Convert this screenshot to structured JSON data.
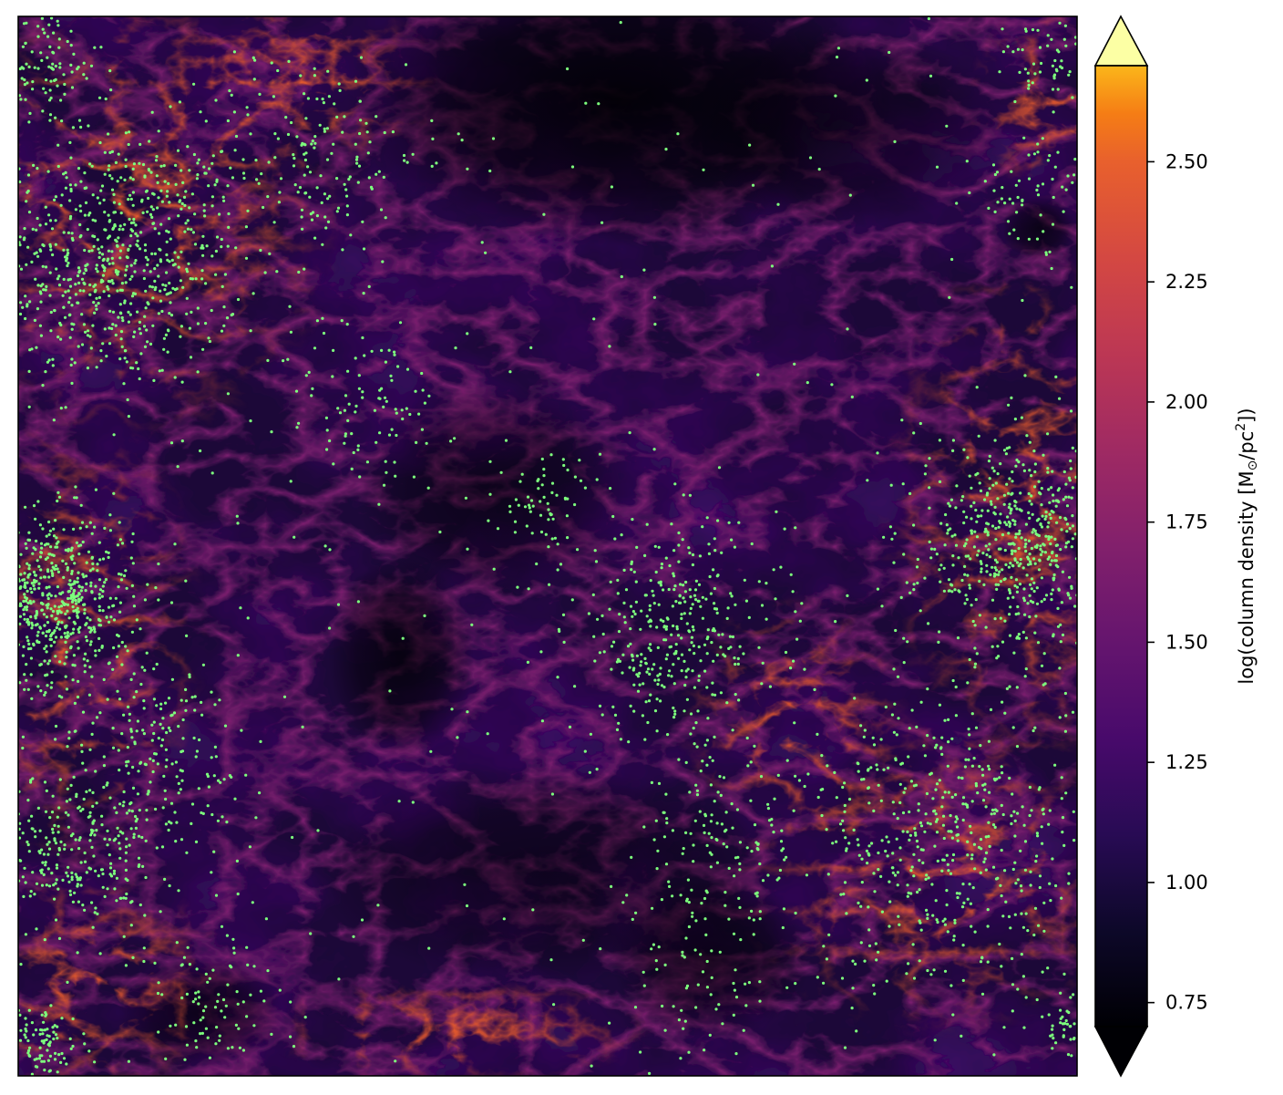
{
  "chart_data": {
    "type": "heatmap",
    "title": "",
    "xlabel": "",
    "ylabel": "",
    "colormap": "inferno",
    "axes_ticks_visible": false,
    "grid": false,
    "colorbar": {
      "label": "log(column density [M",
      "label_sub": "⊙",
      "label_mid": "/pc",
      "label_sup": "2",
      "label_end": "])",
      "range": [
        0.7,
        2.7
      ],
      "extend": "both",
      "ticks": [
        0.75,
        1.0,
        1.25,
        1.5,
        1.75,
        2.0,
        2.25,
        2.5
      ],
      "tick_labels": [
        "0.75",
        "1.00",
        "1.25",
        "1.50",
        "1.75",
        "2.00",
        "2.25",
        "2.50"
      ]
    },
    "overlay": {
      "type": "scatter",
      "marker": "dot",
      "color": "#7dff7d",
      "clusters": [
        {
          "region": "upper-left",
          "cx": 0.09,
          "cy": 0.77,
          "spread": 0.06,
          "n": 700
        },
        {
          "region": "upper-left-edge",
          "cx": 0.02,
          "cy": 0.95,
          "spread": 0.03,
          "n": 120
        },
        {
          "region": "upper-center-left",
          "cx": 0.28,
          "cy": 0.87,
          "spread": 0.05,
          "n": 160
        },
        {
          "region": "left-mid",
          "cx": 0.33,
          "cy": 0.63,
          "spread": 0.04,
          "n": 90
        },
        {
          "region": "left-edge-mid",
          "cx": 0.03,
          "cy": 0.45,
          "spread": 0.04,
          "n": 650
        },
        {
          "region": "left-lower",
          "cx": 0.05,
          "cy": 0.21,
          "spread": 0.04,
          "n": 260
        },
        {
          "region": "left-lower-2",
          "cx": 0.13,
          "cy": 0.3,
          "spread": 0.05,
          "n": 220
        },
        {
          "region": "left-edge-bottom",
          "cx": 0.02,
          "cy": 0.03,
          "spread": 0.02,
          "n": 110
        },
        {
          "region": "bottom-left",
          "cx": 0.18,
          "cy": 0.06,
          "spread": 0.04,
          "n": 90
        },
        {
          "region": "center",
          "cx": 0.5,
          "cy": 0.54,
          "spread": 0.025,
          "n": 70
        },
        {
          "region": "center-right-filament",
          "cx": 0.62,
          "cy": 0.42,
          "spread": 0.05,
          "n": 350
        },
        {
          "region": "center-lower",
          "cx": 0.66,
          "cy": 0.22,
          "spread": 0.04,
          "n": 120
        },
        {
          "region": "bottom-center",
          "cx": 0.64,
          "cy": 0.09,
          "spread": 0.04,
          "n": 70
        },
        {
          "region": "right-mid",
          "cx": 0.95,
          "cy": 0.5,
          "spread": 0.05,
          "n": 600
        },
        {
          "region": "right-lower",
          "cx": 0.88,
          "cy": 0.22,
          "spread": 0.07,
          "n": 500
        },
        {
          "region": "right-top",
          "cx": 0.96,
          "cy": 0.83,
          "spread": 0.03,
          "n": 60
        },
        {
          "region": "right-top-corner",
          "cx": 0.97,
          "cy": 0.96,
          "spread": 0.02,
          "n": 50
        },
        {
          "region": "right-bottom-edge",
          "cx": 0.99,
          "cy": 0.05,
          "spread": 0.015,
          "n": 50
        },
        {
          "region": "field",
          "cx": 0.5,
          "cy": 0.5,
          "spread": 0.5,
          "n": 250
        }
      ]
    }
  }
}
